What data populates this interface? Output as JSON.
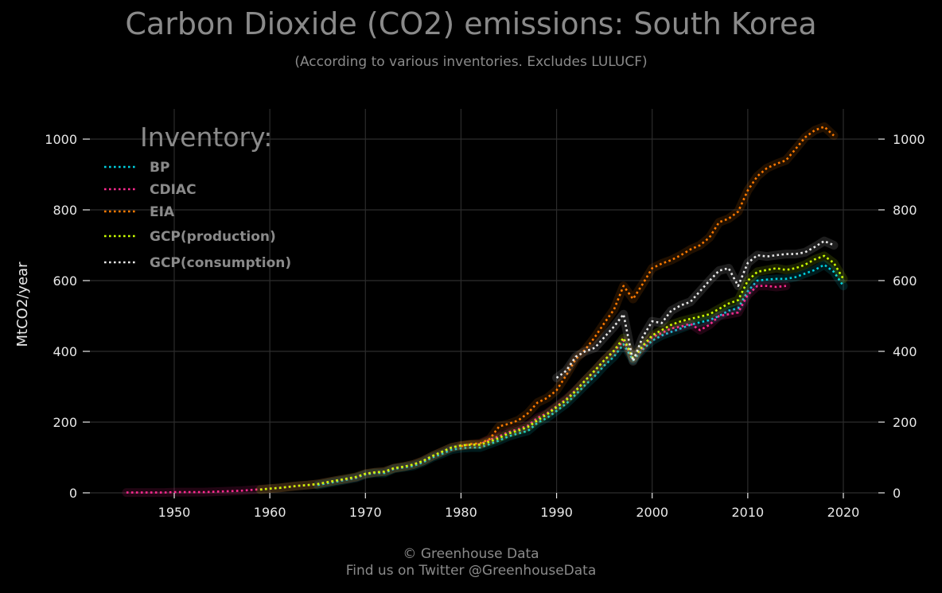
{
  "title": "Carbon Dioxide (CO2) emissions: South Korea",
  "subtitle": "(According to various inventories. Excludes LULUCF)",
  "footer": {
    "line1": "© Greenhouse Data",
    "line2": "Find us on Twitter @GreenhouseData"
  },
  "chart_data": {
    "type": "line",
    "title": "Carbon Dioxide (CO2) emissions: South Korea",
    "subtitle": "(According to various inventories. Excludes LULUCF)",
    "xlabel": "",
    "ylabel": "MtCO2/year",
    "xlim": [
      1942,
      2023.5
    ],
    "ylim": [
      0,
      1080
    ],
    "xticks": [
      1950,
      1960,
      1970,
      1980,
      1990,
      2000,
      2010,
      2020
    ],
    "yticks": [
      0,
      200,
      400,
      600,
      800,
      1000
    ],
    "grid": true,
    "legend_title": "Inventory:",
    "legend_position": "top-left",
    "series": [
      {
        "name": "BP",
        "color": "#00d0e0",
        "points": [
          [
            1965,
            22
          ],
          [
            1966,
            27
          ],
          [
            1967,
            32
          ],
          [
            1968,
            37
          ],
          [
            1969,
            42
          ],
          [
            1970,
            52
          ],
          [
            1971,
            56
          ],
          [
            1972,
            56
          ],
          [
            1973,
            68
          ],
          [
            1974,
            72
          ],
          [
            1975,
            76
          ],
          [
            1976,
            86
          ],
          [
            1977,
            100
          ],
          [
            1978,
            110
          ],
          [
            1979,
            122
          ],
          [
            1980,
            126
          ],
          [
            1981,
            128
          ],
          [
            1982,
            128
          ],
          [
            1983,
            138
          ],
          [
            1984,
            148
          ],
          [
            1985,
            160
          ],
          [
            1986,
            168
          ],
          [
            1987,
            175
          ],
          [
            1988,
            198
          ],
          [
            1989,
            212
          ],
          [
            1990,
            232
          ],
          [
            1991,
            252
          ],
          [
            1992,
            278
          ],
          [
            1993,
            305
          ],
          [
            1994,
            330
          ],
          [
            1995,
            360
          ],
          [
            1996,
            385
          ],
          [
            1997,
            420
          ],
          [
            1998,
            375
          ],
          [
            1999,
            405
          ],
          [
            2000,
            430
          ],
          [
            2001,
            445
          ],
          [
            2002,
            455
          ],
          [
            2003,
            465
          ],
          [
            2004,
            475
          ],
          [
            2005,
            482
          ],
          [
            2006,
            488
          ],
          [
            2007,
            500
          ],
          [
            2008,
            515
          ],
          [
            2009,
            522
          ],
          [
            2010,
            570
          ],
          [
            2011,
            600
          ],
          [
            2012,
            603
          ],
          [
            2013,
            605
          ],
          [
            2014,
            605
          ],
          [
            2015,
            610
          ],
          [
            2016,
            620
          ],
          [
            2017,
            630
          ],
          [
            2018,
            645
          ],
          [
            2019,
            625
          ],
          [
            2020,
            585
          ]
        ]
      },
      {
        "name": "CDIAC",
        "color": "#ff2a90",
        "points": [
          [
            1945,
            1
          ],
          [
            1946,
            1
          ],
          [
            1947,
            1
          ],
          [
            1948,
            1
          ],
          [
            1949,
            1
          ],
          [
            1950,
            2
          ],
          [
            1951,
            2
          ],
          [
            1952,
            2
          ],
          [
            1953,
            2
          ],
          [
            1954,
            3
          ],
          [
            1955,
            4
          ],
          [
            1956,
            5
          ],
          [
            1957,
            6
          ],
          [
            1958,
            8
          ],
          [
            1959,
            10
          ],
          [
            1960,
            12
          ],
          [
            1961,
            14
          ],
          [
            1962,
            17
          ],
          [
            1963,
            20
          ],
          [
            1964,
            22
          ],
          [
            1965,
            25
          ],
          [
            1966,
            30
          ],
          [
            1967,
            35
          ],
          [
            1968,
            39
          ],
          [
            1969,
            44
          ],
          [
            1970,
            54
          ],
          [
            1971,
            58
          ],
          [
            1972,
            60
          ],
          [
            1973,
            70
          ],
          [
            1974,
            74
          ],
          [
            1975,
            80
          ],
          [
            1976,
            90
          ],
          [
            1977,
            104
          ],
          [
            1978,
            116
          ],
          [
            1979,
            128
          ],
          [
            1980,
            134
          ],
          [
            1981,
            136
          ],
          [
            1982,
            138
          ],
          [
            1983,
            150
          ],
          [
            1984,
            160
          ],
          [
            1985,
            172
          ],
          [
            1986,
            180
          ],
          [
            1987,
            190
          ],
          [
            1988,
            212
          ],
          [
            1989,
            225
          ],
          [
            1990,
            245
          ],
          [
            1991,
            265
          ],
          [
            1992,
            290
          ],
          [
            1993,
            318
          ],
          [
            1994,
            345
          ],
          [
            1995,
            375
          ],
          [
            1996,
            400
          ],
          [
            1997,
            430
          ],
          [
            1998,
            380
          ],
          [
            1999,
            410
          ],
          [
            2000,
            440
          ],
          [
            2001,
            452
          ],
          [
            2002,
            465
          ],
          [
            2003,
            470
          ],
          [
            2004,
            478
          ],
          [
            2005,
            460
          ],
          [
            2006,
            475
          ],
          [
            2007,
            500
          ],
          [
            2008,
            505
          ],
          [
            2009,
            510
          ],
          [
            2010,
            560
          ],
          [
            2011,
            585
          ],
          [
            2012,
            585
          ],
          [
            2013,
            582
          ],
          [
            2014,
            585
          ]
        ]
      },
      {
        "name": "EIA",
        "color": "#ff7a00",
        "points": [
          [
            1980,
            132
          ],
          [
            1981,
            138
          ],
          [
            1982,
            140
          ],
          [
            1983,
            152
          ],
          [
            1984,
            188
          ],
          [
            1985,
            195
          ],
          [
            1986,
            205
          ],
          [
            1987,
            225
          ],
          [
            1988,
            255
          ],
          [
            1989,
            268
          ],
          [
            1990,
            290
          ],
          [
            1991,
            332
          ],
          [
            1992,
            378
          ],
          [
            1993,
            405
          ],
          [
            1994,
            440
          ],
          [
            1995,
            480
          ],
          [
            1996,
            518
          ],
          [
            1997,
            585
          ],
          [
            1998,
            548
          ],
          [
            1999,
            590
          ],
          [
            2000,
            635
          ],
          [
            2001,
            648
          ],
          [
            2002,
            658
          ],
          [
            2003,
            672
          ],
          [
            2004,
            688
          ],
          [
            2005,
            700
          ],
          [
            2006,
            722
          ],
          [
            2007,
            765
          ],
          [
            2008,
            775
          ],
          [
            2009,
            795
          ],
          [
            2010,
            855
          ],
          [
            2011,
            895
          ],
          [
            2012,
            918
          ],
          [
            2013,
            930
          ],
          [
            2014,
            940
          ],
          [
            2015,
            972
          ],
          [
            2016,
            1005
          ],
          [
            2017,
            1025
          ],
          [
            2018,
            1035
          ],
          [
            2019,
            1010
          ]
        ]
      },
      {
        "name": "GCP(production)",
        "color": "#ccff00",
        "points": [
          [
            1959,
            9
          ],
          [
            1960,
            12
          ],
          [
            1961,
            14
          ],
          [
            1962,
            17
          ],
          [
            1963,
            20
          ],
          [
            1964,
            22
          ],
          [
            1965,
            25
          ],
          [
            1966,
            30
          ],
          [
            1967,
            35
          ],
          [
            1968,
            40
          ],
          [
            1969,
            45
          ],
          [
            1970,
            54
          ],
          [
            1971,
            58
          ],
          [
            1972,
            60
          ],
          [
            1973,
            70
          ],
          [
            1974,
            74
          ],
          [
            1975,
            80
          ],
          [
            1976,
            90
          ],
          [
            1977,
            104
          ],
          [
            1978,
            116
          ],
          [
            1979,
            128
          ],
          [
            1980,
            134
          ],
          [
            1981,
            136
          ],
          [
            1982,
            136
          ],
          [
            1983,
            145
          ],
          [
            1984,
            155
          ],
          [
            1985,
            168
          ],
          [
            1986,
            176
          ],
          [
            1987,
            186
          ],
          [
            1988,
            205
          ],
          [
            1989,
            222
          ],
          [
            1990,
            242
          ],
          [
            1991,
            262
          ],
          [
            1992,
            288
          ],
          [
            1993,
            318
          ],
          [
            1994,
            346
          ],
          [
            1995,
            375
          ],
          [
            1996,
            402
          ],
          [
            1997,
            438
          ],
          [
            1998,
            380
          ],
          [
            1999,
            415
          ],
          [
            2000,
            445
          ],
          [
            2001,
            460
          ],
          [
            2002,
            475
          ],
          [
            2003,
            485
          ],
          [
            2004,
            492
          ],
          [
            2005,
            498
          ],
          [
            2006,
            505
          ],
          [
            2007,
            520
          ],
          [
            2008,
            535
          ],
          [
            2009,
            545
          ],
          [
            2010,
            600
          ],
          [
            2011,
            625
          ],
          [
            2012,
            630
          ],
          [
            2013,
            635
          ],
          [
            2014,
            630
          ],
          [
            2015,
            635
          ],
          [
            2016,
            645
          ],
          [
            2017,
            660
          ],
          [
            2018,
            670
          ],
          [
            2019,
            650
          ],
          [
            2020,
            605
          ]
        ]
      },
      {
        "name": "GCP(consumption)",
        "color": "#e8e8e8",
        "points": [
          [
            1990,
            325
          ],
          [
            1991,
            345
          ],
          [
            1992,
            385
          ],
          [
            1993,
            400
          ],
          [
            1994,
            410
          ],
          [
            1995,
            440
          ],
          [
            1996,
            470
          ],
          [
            1997,
            505
          ],
          [
            1998,
            372
          ],
          [
            1999,
            440
          ],
          [
            2000,
            485
          ],
          [
            2001,
            480
          ],
          [
            2002,
            515
          ],
          [
            2003,
            530
          ],
          [
            2004,
            540
          ],
          [
            2005,
            570
          ],
          [
            2006,
            600
          ],
          [
            2007,
            628
          ],
          [
            2008,
            635
          ],
          [
            2009,
            585
          ],
          [
            2010,
            650
          ],
          [
            2011,
            672
          ],
          [
            2012,
            668
          ],
          [
            2013,
            672
          ],
          [
            2014,
            675
          ],
          [
            2015,
            675
          ],
          [
            2016,
            680
          ],
          [
            2017,
            695
          ],
          [
            2018,
            712
          ],
          [
            2019,
            700
          ]
        ]
      }
    ]
  }
}
